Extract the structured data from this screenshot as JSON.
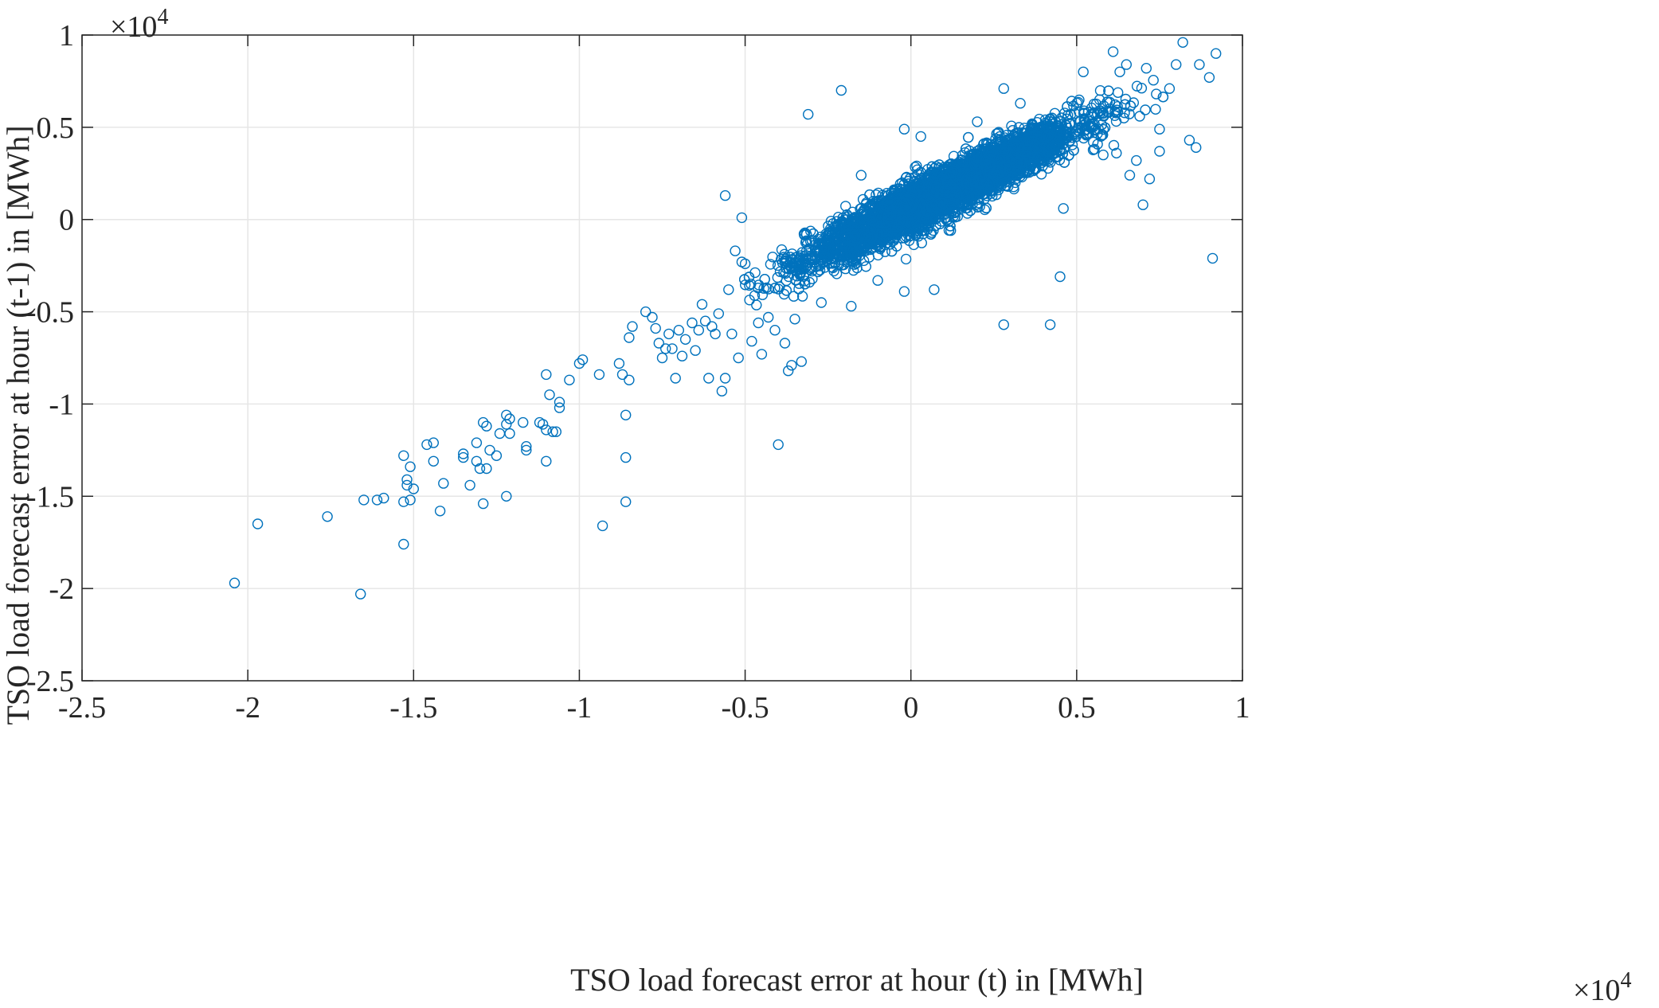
{
  "chart_data": {
    "type": "scatter",
    "xlabel": "TSO load forecast error at hour (t) in [MWh]",
    "ylabel": "TSO load forecast error at hour (t-1) in [MWh]",
    "x_exponent": "×10",
    "x_exponent_power": "4",
    "y_exponent": "×10",
    "y_exponent_power": "4",
    "xlim": [
      -2.5,
      1
    ],
    "ylim": [
      -2.5,
      1
    ],
    "xticks": [
      -2.5,
      -2,
      -1.5,
      -1,
      -0.5,
      0,
      0.5,
      1
    ],
    "xtick_labels": [
      "-2.5",
      "-2",
      "-1.5",
      "-1",
      "-0.5",
      "0",
      "0.5",
      "1"
    ],
    "yticks": [
      -2.5,
      -2,
      -1.5,
      -1,
      -0.5,
      0,
      0.5,
      1
    ],
    "ytick_labels": [
      "-2.5",
      "-2",
      "-1.5",
      "-1",
      "-0.5",
      "0",
      "0.5",
      "1"
    ],
    "grid": true,
    "marker": "circle-open",
    "color": "#0072BD",
    "dense_cluster_note": "Main cloud (~thousands of points) concentrated along y≈0.9x, x from about -0.55 to 0.75 (×10^4)",
    "points": [
      [
        -2.04,
        -1.97
      ],
      [
        -1.97,
        -1.65
      ],
      [
        -1.76,
        -1.61
      ],
      [
        -1.66,
        -2.03
      ],
      [
        -1.65,
        -1.52
      ],
      [
        -1.61,
        -1.52
      ],
      [
        -1.59,
        -1.51
      ],
      [
        -1.53,
        -1.53
      ],
      [
        -1.53,
        -1.28
      ],
      [
        -1.53,
        -1.76
      ],
      [
        -1.52,
        -1.41
      ],
      [
        -1.52,
        -1.44
      ],
      [
        -1.51,
        -1.34
      ],
      [
        -1.51,
        -1.52
      ],
      [
        -1.5,
        -1.46
      ],
      [
        -1.46,
        -1.22
      ],
      [
        -1.44,
        -1.21
      ],
      [
        -1.44,
        -1.31
      ],
      [
        -1.42,
        -1.58
      ],
      [
        -1.41,
        -1.43
      ],
      [
        -1.35,
        -1.27
      ],
      [
        -1.35,
        -1.29
      ],
      [
        -1.33,
        -1.44
      ],
      [
        -1.31,
        -1.21
      ],
      [
        -1.31,
        -1.31
      ],
      [
        -1.3,
        -1.35
      ],
      [
        -1.29,
        -1.1
      ],
      [
        -1.29,
        -1.54
      ],
      [
        -1.28,
        -1.12
      ],
      [
        -1.28,
        -1.35
      ],
      [
        -1.27,
        -1.25
      ],
      [
        -1.25,
        -1.28
      ],
      [
        -1.24,
        -1.16
      ],
      [
        -1.22,
        -1.06
      ],
      [
        -1.22,
        -1.11
      ],
      [
        -1.22,
        -1.5
      ],
      [
        -1.21,
        -1.08
      ],
      [
        -1.21,
        -1.16
      ],
      [
        -1.17,
        -1.1
      ],
      [
        -1.16,
        -1.23
      ],
      [
        -1.16,
        -1.25
      ],
      [
        -1.12,
        -1.1
      ],
      [
        -1.11,
        -1.11
      ],
      [
        -1.1,
        -0.84
      ],
      [
        -1.1,
        -1.31
      ],
      [
        -1.1,
        -1.14
      ],
      [
        -1.09,
        -0.95
      ],
      [
        -1.08,
        -1.15
      ],
      [
        -1.07,
        -1.15
      ],
      [
        -1.06,
        -0.99
      ],
      [
        -1.06,
        -1.02
      ],
      [
        -1.03,
        -0.87
      ],
      [
        -1.0,
        -0.78
      ],
      [
        -0.99,
        -0.76
      ],
      [
        -0.94,
        -0.84
      ],
      [
        -0.93,
        -1.66
      ],
      [
        -0.88,
        -0.78
      ],
      [
        -0.87,
        -0.84
      ],
      [
        -0.86,
        -1.29
      ],
      [
        -0.86,
        -1.53
      ],
      [
        -0.86,
        -1.06
      ],
      [
        -0.85,
        -0.87
      ],
      [
        -0.85,
        -0.64
      ],
      [
        -0.84,
        -0.58
      ],
      [
        -0.8,
        -0.5
      ],
      [
        -0.78,
        -0.53
      ],
      [
        -0.77,
        -0.59
      ],
      [
        -0.76,
        -0.67
      ],
      [
        -0.75,
        -0.75
      ],
      [
        -0.74,
        -0.7
      ],
      [
        -0.73,
        -0.62
      ],
      [
        -0.72,
        -0.7
      ],
      [
        -0.71,
        -0.86
      ],
      [
        -0.7,
        -0.6
      ],
      [
        -0.69,
        -0.74
      ],
      [
        -0.68,
        -0.65
      ],
      [
        -0.66,
        -0.56
      ],
      [
        -0.65,
        -0.71
      ],
      [
        -0.64,
        -0.6
      ],
      [
        -0.63,
        -0.46
      ],
      [
        -0.62,
        -0.55
      ],
      [
        -0.61,
        -0.86
      ],
      [
        -0.6,
        -0.58
      ],
      [
        -0.59,
        -0.62
      ],
      [
        -0.58,
        -0.51
      ],
      [
        -0.57,
        -0.93
      ],
      [
        -0.56,
        0.13
      ],
      [
        -0.56,
        -0.86
      ],
      [
        -0.55,
        -0.38
      ],
      [
        -0.54,
        -0.62
      ],
      [
        -0.53,
        -0.17
      ],
      [
        -0.52,
        -0.75
      ],
      [
        -0.51,
        -0.23
      ],
      [
        -0.51,
        0.01
      ],
      [
        -0.5,
        -0.24
      ],
      [
        -0.48,
        -0.66
      ],
      [
        -0.46,
        -0.56
      ],
      [
        -0.45,
        -0.73
      ],
      [
        -0.43,
        -0.53
      ],
      [
        -0.41,
        -0.6
      ],
      [
        -0.4,
        -1.22
      ],
      [
        -0.38,
        -0.67
      ],
      [
        -0.37,
        -0.82
      ],
      [
        -0.36,
        -0.79
      ],
      [
        -0.35,
        -0.54
      ],
      [
        -0.33,
        -0.77
      ],
      [
        -0.31,
        0.57
      ],
      [
        -0.21,
        0.7
      ],
      [
        -0.1,
        -0.33
      ],
      [
        -0.02,
        -0.39
      ],
      [
        0.07,
        -0.38
      ],
      [
        0.28,
        -0.57
      ],
      [
        0.42,
        -0.57
      ],
      [
        0.46,
        0.06
      ],
      [
        0.45,
        -0.31
      ],
      [
        0.52,
        0.8
      ],
      [
        0.55,
        0.42
      ],
      [
        0.58,
        0.35
      ],
      [
        0.61,
        0.91
      ],
      [
        0.62,
        0.36
      ],
      [
        0.63,
        0.8
      ],
      [
        0.65,
        0.84
      ],
      [
        0.66,
        0.24
      ],
      [
        0.68,
        0.32
      ],
      [
        0.71,
        0.82
      ],
      [
        0.7,
        0.08
      ],
      [
        0.75,
        0.49
      ],
      [
        0.78,
        0.71
      ],
      [
        0.8,
        0.84
      ],
      [
        0.82,
        0.96
      ],
      [
        0.84,
        0.43
      ],
      [
        0.86,
        0.39
      ],
      [
        0.87,
        0.84
      ],
      [
        0.9,
        0.77
      ],
      [
        0.92,
        0.9
      ],
      [
        0.91,
        -0.21
      ],
      [
        0.75,
        0.37
      ],
      [
        0.72,
        0.22
      ],
      [
        0.69,
        0.56
      ],
      [
        0.74,
        0.68
      ],
      [
        -0.02,
        0.49
      ],
      [
        0.03,
        0.45
      ],
      [
        0.12,
        -0.06
      ],
      [
        -0.15,
        0.24
      ],
      [
        0.2,
        0.53
      ],
      [
        0.35,
        0.38
      ],
      [
        0.33,
        0.63
      ],
      [
        0.28,
        0.71
      ],
      [
        -0.27,
        -0.45
      ],
      [
        -0.18,
        -0.47
      ]
    ]
  }
}
